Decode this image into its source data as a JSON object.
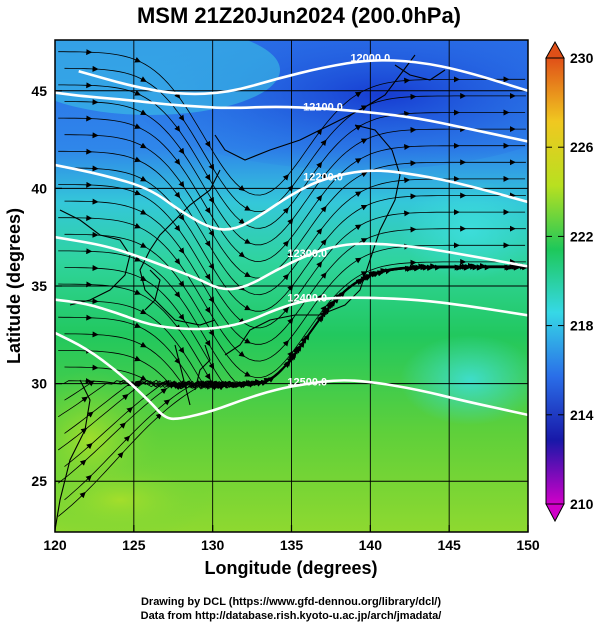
{
  "title": "MSM 21Z20Jun2024 (200.0hPa)",
  "credits": [
    "Drawing by DCL (https://www.gfd-dennou.org/library/dcl/)",
    "Data from http://database.rish.kyoto-u.ac.jp/arch/jmadata/"
  ],
  "chart_data": {
    "type": "heatmap",
    "xlabel": "Longitude (degrees)",
    "ylabel": "Latitude  (degrees)",
    "xlim": [
      120,
      150
    ],
    "ylim": [
      22.4,
      47.6
    ],
    "xticks": [
      120,
      125,
      130,
      135,
      140,
      145,
      150
    ],
    "yticks": [
      25,
      30,
      35,
      40,
      45
    ],
    "grid": true,
    "colorbar": {
      "range": [
        210,
        230
      ],
      "ticks": [
        210,
        214,
        218,
        222,
        226,
        230
      ],
      "colors": [
        "#d000c8",
        "#1818a8",
        "#2a6ee8",
        "#36d8e6",
        "#1ec85a",
        "#b8e020",
        "#f0c820",
        "#e05018"
      ]
    },
    "contours": [
      {
        "label": "12000.0",
        "lon": [
          121.5,
          125,
          128,
          131,
          134,
          137,
          140,
          143,
          146,
          150
        ],
        "lat": [
          46.0,
          45.2,
          44.8,
          44.9,
          45.6,
          46.2,
          46.6,
          46.5,
          46.0,
          45.0
        ]
      },
      {
        "label": "12100.0",
        "lon": [
          120,
          122,
          125,
          127,
          129,
          131,
          134,
          137,
          140,
          143,
          146,
          150
        ],
        "lat": [
          44.9,
          44.7,
          44.5,
          44.3,
          44.2,
          44.1,
          44.2,
          44.1,
          43.9,
          43.6,
          43.1,
          42.4
        ]
      },
      {
        "label": "12200.0",
        "lon": [
          120,
          123,
          126,
          128,
          130,
          131.5,
          133,
          135,
          137,
          140,
          143,
          146,
          150
        ],
        "lat": [
          41.2,
          40.7,
          40.0,
          38.8,
          37.9,
          37.9,
          38.6,
          39.7,
          40.5,
          41.0,
          40.7,
          40.2,
          39.3
        ]
      },
      {
        "label": "12300.0",
        "lon": [
          120,
          123,
          125,
          127,
          129,
          130.5,
          132,
          134,
          136,
          138,
          140,
          143,
          146,
          150
        ],
        "lat": [
          37.5,
          37.1,
          36.6,
          36.0,
          35.4,
          34.8,
          34.9,
          35.8,
          36.6,
          37.1,
          37.2,
          37.0,
          36.6,
          36.0
        ]
      },
      {
        "label": "12400.0",
        "lon": [
          120,
          122,
          124,
          126,
          128,
          130,
          132,
          134,
          136,
          138,
          140,
          143,
          146,
          150
        ],
        "lat": [
          34.3,
          34.1,
          33.6,
          33.0,
          32.8,
          32.8,
          33.1,
          33.8,
          34.3,
          34.4,
          34.4,
          34.3,
          34.0,
          33.5
        ]
      },
      {
        "label": "12500.0",
        "lon": [
          120,
          122,
          124,
          126,
          127,
          128,
          130,
          132,
          134,
          136,
          138,
          140,
          143,
          146,
          150
        ],
        "lat": [
          32.6,
          31.8,
          30.6,
          29.1,
          28.2,
          28.2,
          28.6,
          29.2,
          29.7,
          30.0,
          30.2,
          30.1,
          29.7,
          29.1,
          28.4
        ]
      }
    ]
  }
}
